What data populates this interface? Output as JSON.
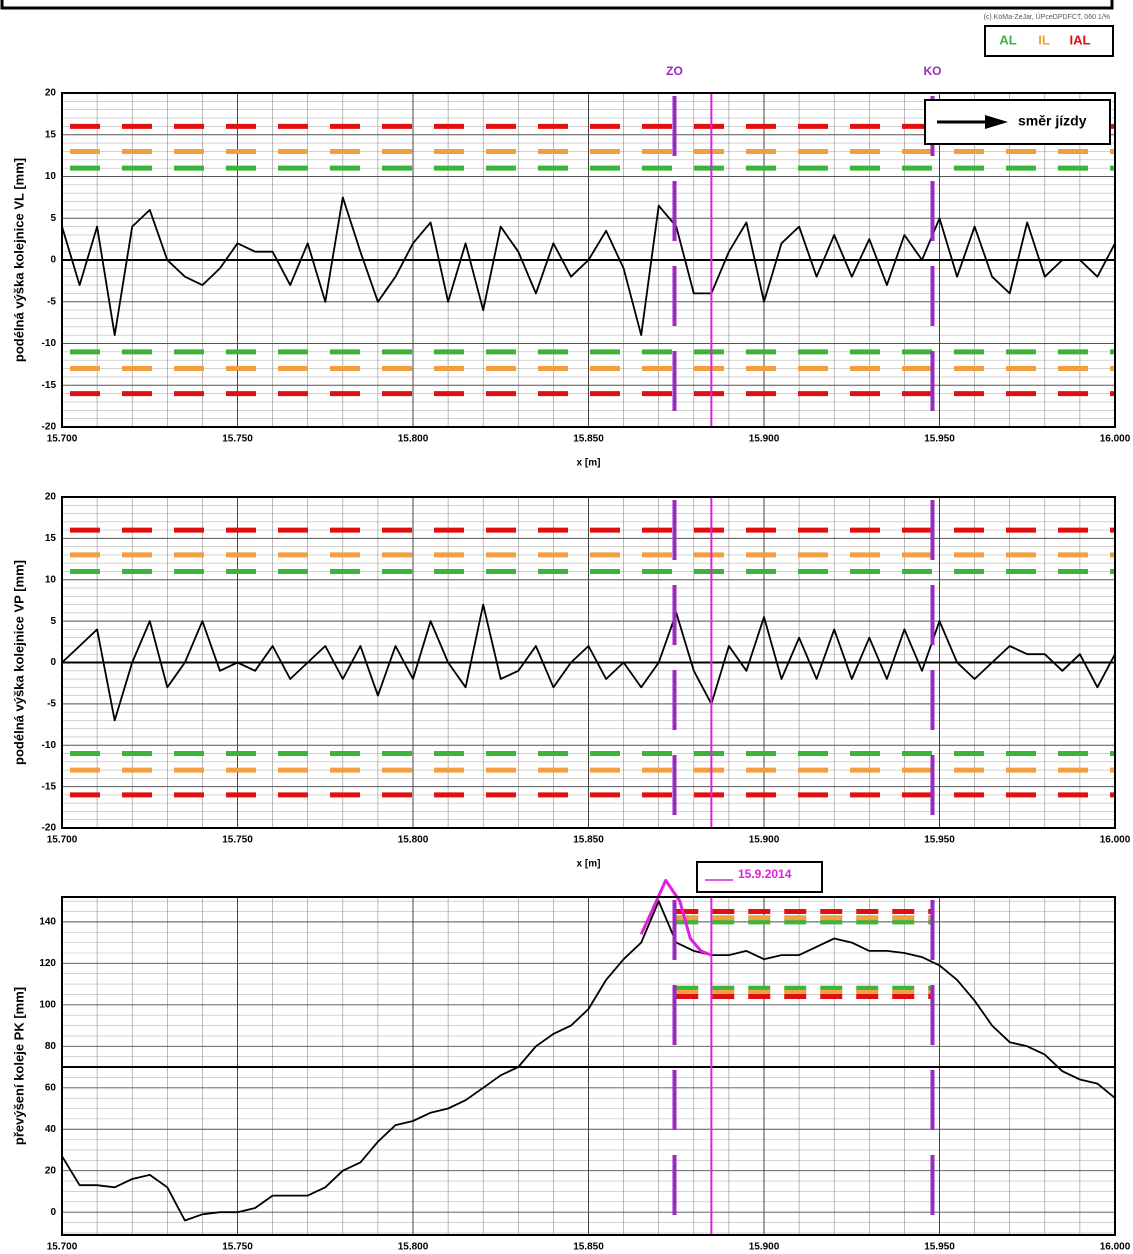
{
  "copyright": "(c) KoMa-ZeJar, ÚPceDPDFCT, 060 1/%",
  "legend": [
    {
      "label": "AL",
      "color": "#3cb43c"
    },
    {
      "label": "IL",
      "color": "#f0a040"
    },
    {
      "label": "IAL",
      "color": "#e01010"
    }
  ],
  "markers": [
    {
      "label": "ZO",
      "x": 15.8745,
      "color": "#9a2ac0"
    },
    {
      "label": "KO",
      "x": 15.948,
      "color": "#9a2ac0"
    }
  ],
  "cursor": {
    "x": 15.885,
    "color": "#e020e0"
  },
  "direction": "směr jízdy",
  "chart_data": [
    {
      "type": "line",
      "ylabel": "podélná výška kolejnice VL [mm]",
      "xlabel": "x [m]",
      "xlim": [
        15.7,
        16.0
      ],
      "xticks": [
        {
          "value": 15.7,
          "label": "15.700"
        },
        {
          "value": 15.75,
          "label": "15.750"
        },
        {
          "value": 15.8,
          "label": "15.800"
        },
        {
          "value": 15.85,
          "label": "15.850"
        },
        {
          "value": 15.9,
          "label": "15.900"
        },
        {
          "value": 15.95,
          "label": "15.950"
        },
        {
          "value": 16.0,
          "label": "16.000"
        }
      ],
      "ylim": [
        -20,
        20
      ],
      "yticks": [
        -20,
        -15,
        -10,
        -5,
        0,
        5,
        10,
        15,
        20
      ],
      "minor_ystep": 1,
      "minor_xstep": 0.01,
      "ref_line": 0,
      "limits": [
        {
          "color": "#3cb43c",
          "values": [
            11,
            -11
          ]
        },
        {
          "color": "#f0a040",
          "values": [
            13,
            -13
          ]
        },
        {
          "color": "#e01010",
          "values": [
            16,
            -16
          ]
        }
      ],
      "x": [
        15.7,
        15.705,
        15.71,
        15.715,
        15.72,
        15.725,
        15.73,
        15.735,
        15.74,
        15.745,
        15.75,
        15.755,
        15.76,
        15.765,
        15.77,
        15.775,
        15.78,
        15.785,
        15.79,
        15.795,
        15.8,
        15.805,
        15.81,
        15.815,
        15.82,
        15.825,
        15.83,
        15.835,
        15.84,
        15.845,
        15.85,
        15.855,
        15.86,
        15.865,
        15.87,
        15.875,
        15.88,
        15.885,
        15.89,
        15.895,
        15.9,
        15.905,
        15.91,
        15.915,
        15.92,
        15.925,
        15.93,
        15.935,
        15.94,
        15.945,
        15.95,
        15.955,
        15.96,
        15.965,
        15.97,
        15.975,
        15.98,
        15.985,
        15.99,
        15.995,
        16.0
      ],
      "series": [
        {
          "color": "#000000",
          "values": [
            4,
            -3,
            4,
            -9,
            4,
            6,
            0,
            -2,
            -3,
            -1,
            2,
            1,
            1,
            -3,
            2,
            -5,
            7.5,
            1,
            -5,
            -2,
            2,
            4.5,
            -5,
            2,
            -6,
            4,
            1,
            -4,
            2,
            -2,
            0,
            3.5,
            -1,
            -9,
            6.5,
            4,
            -4,
            -4,
            1,
            4.5,
            -5,
            2,
            4,
            -2,
            3,
            -2,
            2.5,
            -3,
            3,
            0,
            5,
            -2,
            4,
            -2,
            -4,
            4.5,
            -2,
            0,
            0,
            -2,
            2
          ]
        }
      ]
    },
    {
      "type": "line",
      "ylabel": "podélná výška kolejnice VP [mm]",
      "xlabel": "x [m]",
      "xlim": [
        15.7,
        16.0
      ],
      "xticks": [
        {
          "value": 15.7,
          "label": "15.700"
        },
        {
          "value": 15.75,
          "label": "15.750"
        },
        {
          "value": 15.8,
          "label": "15.800"
        },
        {
          "value": 15.85,
          "label": "15.850"
        },
        {
          "value": 15.9,
          "label": "15.900"
        },
        {
          "value": 15.95,
          "label": "15.950"
        },
        {
          "value": 16.0,
          "label": "16.000"
        }
      ],
      "ylim": [
        -20,
        20
      ],
      "yticks": [
        -20,
        -15,
        -10,
        -5,
        0,
        5,
        10,
        15,
        20
      ],
      "minor_ystep": 1,
      "minor_xstep": 0.01,
      "ref_line": 0,
      "limits": [
        {
          "color": "#3cb43c",
          "values": [
            11,
            -11
          ]
        },
        {
          "color": "#f0a040",
          "values": [
            13,
            -13
          ]
        },
        {
          "color": "#e01010",
          "values": [
            16,
            -16
          ]
        }
      ],
      "x": [
        15.7,
        15.705,
        15.71,
        15.715,
        15.72,
        15.725,
        15.73,
        15.735,
        15.74,
        15.745,
        15.75,
        15.755,
        15.76,
        15.765,
        15.77,
        15.775,
        15.78,
        15.785,
        15.79,
        15.795,
        15.8,
        15.805,
        15.81,
        15.815,
        15.82,
        15.825,
        15.83,
        15.835,
        15.84,
        15.845,
        15.85,
        15.855,
        15.86,
        15.865,
        15.87,
        15.875,
        15.88,
        15.885,
        15.89,
        15.895,
        15.9,
        15.905,
        15.91,
        15.915,
        15.92,
        15.925,
        15.93,
        15.935,
        15.94,
        15.945,
        15.95,
        15.955,
        15.96,
        15.965,
        15.97,
        15.975,
        15.98,
        15.985,
        15.99,
        15.995,
        16.0
      ],
      "series": [
        {
          "color": "#000000",
          "values": [
            0,
            2,
            4,
            -7,
            0,
            5,
            -3,
            0,
            5,
            -1,
            0,
            -1,
            2,
            -2,
            0,
            2,
            -2,
            2,
            -4,
            2,
            -2,
            5,
            0,
            -3,
            7,
            -2,
            -1,
            2,
            -3,
            0,
            2,
            -2,
            0,
            -3,
            0,
            6,
            -1,
            -5,
            2,
            -1,
            5.5,
            -2,
            3,
            -2,
            4,
            -2,
            3,
            -2,
            4,
            -1,
            5,
            0,
            -2,
            0,
            2,
            1,
            1,
            -1,
            1,
            -3,
            1
          ]
        }
      ]
    },
    {
      "type": "line",
      "ylabel": "převýšení koleje PK [mm]",
      "xlim": [
        15.7,
        16.0
      ],
      "xticks": [
        {
          "value": 15.7,
          "label": "15.700"
        },
        {
          "value": 15.75,
          "label": "15.750"
        },
        {
          "value": 15.8,
          "label": "15.800"
        },
        {
          "value": 15.85,
          "label": "15.850"
        },
        {
          "value": 15.9,
          "label": "15.900"
        },
        {
          "value": 15.95,
          "label": "15.950"
        },
        {
          "value": 16.0,
          "label": "16.000"
        }
      ],
      "ylim": [
        -11,
        152
      ],
      "yticks": [
        0,
        20,
        40,
        60,
        80,
        100,
        120,
        140
      ],
      "minor_ystep": 5,
      "minor_xstep": 0.01,
      "ref_line": 70,
      "limits": [
        {
          "color": "#3cb43c",
          "values": [
            140,
            108
          ]
        },
        {
          "color": "#f0a040",
          "values": [
            142,
            106
          ]
        },
        {
          "color": "#e01010",
          "values": [
            145,
            104
          ]
        }
      ],
      "limit_xlim": [
        15.875,
        15.948
      ],
      "x": [
        15.7,
        15.705,
        15.71,
        15.715,
        15.72,
        15.725,
        15.73,
        15.735,
        15.74,
        15.745,
        15.75,
        15.755,
        15.76,
        15.765,
        15.77,
        15.775,
        15.78,
        15.785,
        15.79,
        15.795,
        15.8,
        15.805,
        15.81,
        15.815,
        15.82,
        15.825,
        15.83,
        15.835,
        15.84,
        15.845,
        15.85,
        15.855,
        15.86,
        15.865,
        15.87,
        15.875,
        15.88,
        15.885,
        15.89,
        15.895,
        15.9,
        15.905,
        15.91,
        15.915,
        15.92,
        15.925,
        15.93,
        15.935,
        15.94,
        15.945,
        15.95,
        15.955,
        15.96,
        15.965,
        15.97,
        15.975,
        15.98,
        15.985,
        15.99,
        15.995,
        16.0
      ],
      "series": [
        {
          "color": "#000000",
          "values": [
            27,
            13,
            13,
            12,
            16,
            18,
            12,
            -4,
            -1,
            0,
            0,
            2,
            8,
            8,
            8,
            12,
            20,
            24,
            34,
            42,
            44,
            48,
            50,
            54,
            60,
            66,
            70,
            80,
            86,
            90,
            98,
            112,
            122,
            130,
            150,
            130,
            126,
            124,
            124,
            126,
            122,
            124,
            124,
            128,
            132,
            130,
            126,
            126,
            125,
            123,
            119,
            112,
            102,
            90,
            82,
            80,
            76,
            68,
            64,
            62,
            55
          ]
        },
        {
          "name": "15.9.2014",
          "color": "#e020e0",
          "x": [
            15.865,
            15.868,
            15.872,
            15.876,
            15.879,
            15.882,
            15.885
          ],
          "values": [
            134,
            145,
            160,
            150,
            132,
            126,
            124
          ]
        }
      ]
    }
  ]
}
